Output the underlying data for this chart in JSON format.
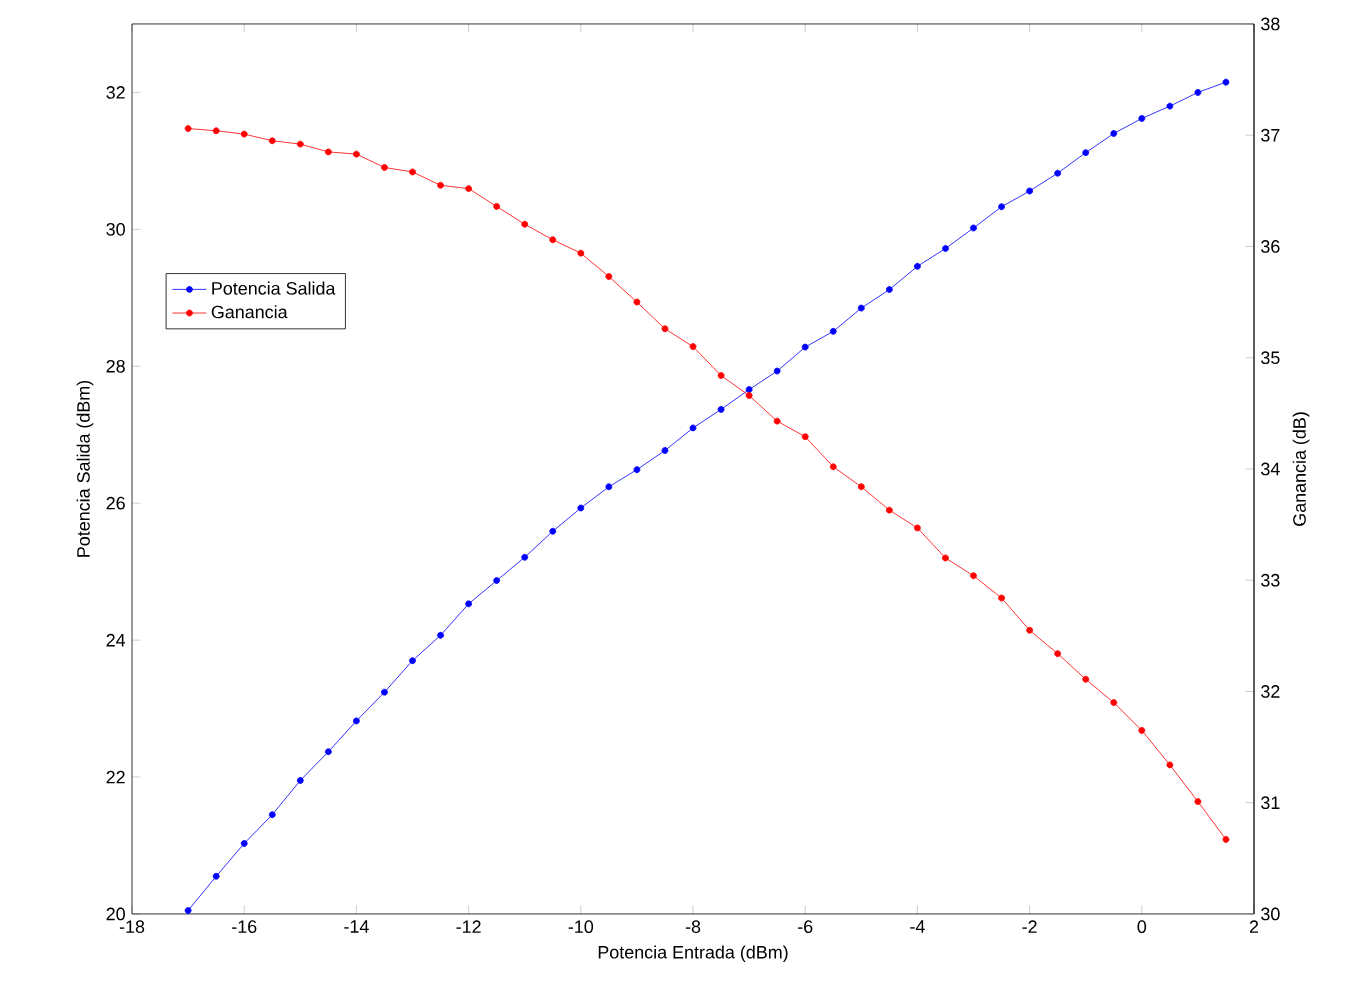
{
  "chart_data": {
    "type": "line",
    "xlabel": "Potencia Entrada (dBm)",
    "ylabel": "Potencia Salida (dBm)",
    "y2label": "Ganancia (dB)",
    "x": [
      -17,
      -16.5,
      -16,
      -15.5,
      -15,
      -14.5,
      -14,
      -13.5,
      -13,
      -12.5,
      -12,
      -11.5,
      -11,
      -10.5,
      -10,
      -9.5,
      -9,
      -8.5,
      -8,
      -7.5,
      -7,
      -6.5,
      -6,
      -5.5,
      -5,
      -4.5,
      -4,
      -3.5,
      -3,
      -2.5,
      -2,
      -1.5,
      -1,
      -0.5,
      0,
      0.5,
      1,
      1.5
    ],
    "series": [
      {
        "name": "Potencia Salida",
        "color": "#0000ff",
        "values": [
          20.05,
          20.55,
          21.03,
          21.45,
          21.95,
          22.37,
          22.82,
          23.24,
          23.7,
          24.07,
          24.53,
          24.87,
          25.21,
          25.59,
          25.93,
          26.24,
          26.49,
          26.77,
          27.1,
          27.37,
          27.66,
          27.93,
          28.28,
          28.51,
          28.85,
          29.12,
          29.46,
          29.72,
          30.02,
          30.33,
          30.56,
          30.82,
          31.12,
          31.4,
          31.62,
          31.8,
          32.0,
          32.15
        ]
      },
      {
        "name": "Ganancia",
        "color": "#ff0000",
        "axis": "y2",
        "values": [
          37.06,
          37.04,
          37.01,
          36.95,
          36.92,
          36.85,
          36.83,
          36.71,
          36.67,
          36.55,
          36.52,
          36.36,
          36.2,
          36.06,
          35.94,
          35.73,
          35.5,
          35.26,
          35.1,
          34.84,
          34.66,
          34.43,
          34.29,
          34.02,
          33.84,
          33.63,
          33.47,
          33.2,
          33.04,
          32.84,
          32.55,
          32.34,
          32.11,
          31.9,
          31.65,
          31.34,
          31.01,
          30.67
        ]
      }
    ],
    "xlim": [
      -18,
      2
    ],
    "xticks": [
      -18,
      -16,
      -14,
      -12,
      -10,
      -8,
      -6,
      -4,
      -2,
      0,
      2
    ],
    "ylim": [
      20,
      33
    ],
    "yticks": [
      20,
      22,
      24,
      26,
      28,
      30,
      32
    ],
    "y2lim": [
      30,
      38
    ],
    "y2ticks": [
      30,
      31,
      32,
      33,
      34,
      35,
      36,
      37,
      38
    ],
    "grid": false,
    "legend": "left",
    "marker": "circle",
    "line_style": "solid"
  }
}
